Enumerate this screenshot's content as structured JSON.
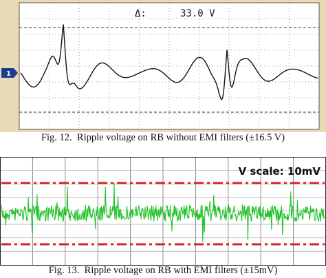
{
  "figure_12": {
    "channel_marker": "1",
    "cursor_label": "Δ:",
    "cursor_value": "33.0 V",
    "caption": "Fig. 12.  Ripple voltage on RB without EMI filters (±16.5 V)"
  },
  "figure_13": {
    "scale_label": "V scale: 10mV",
    "caption": "Fig. 13.  Ripple voltage on RB with EMI filters (±15mV)"
  }
}
